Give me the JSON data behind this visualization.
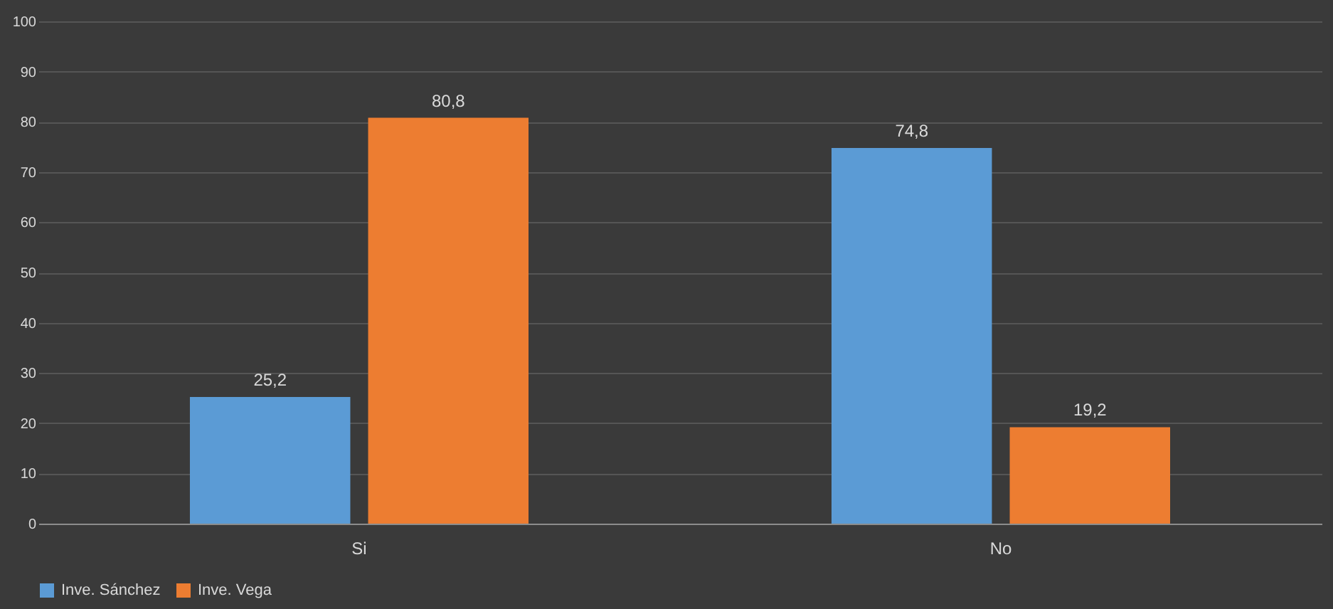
{
  "chart_data": {
    "type": "bar",
    "categories": [
      "Si",
      "No"
    ],
    "series": [
      {
        "name": "Inve. Sánchez",
        "color": "#5b9bd5",
        "values": [
          25.2,
          74.8
        ],
        "value_labels": [
          "25,2",
          "74,8"
        ]
      },
      {
        "name": "Inve. Vega",
        "color": "#ed7d31",
        "values": [
          80.8,
          19.2
        ],
        "value_labels": [
          "80,8",
          "19,2"
        ]
      }
    ],
    "ylim": [
      0,
      100
    ],
    "yticks": [
      0,
      10,
      20,
      30,
      40,
      50,
      60,
      70,
      80,
      90,
      100
    ],
    "grid": "y",
    "legend": "bottom"
  }
}
